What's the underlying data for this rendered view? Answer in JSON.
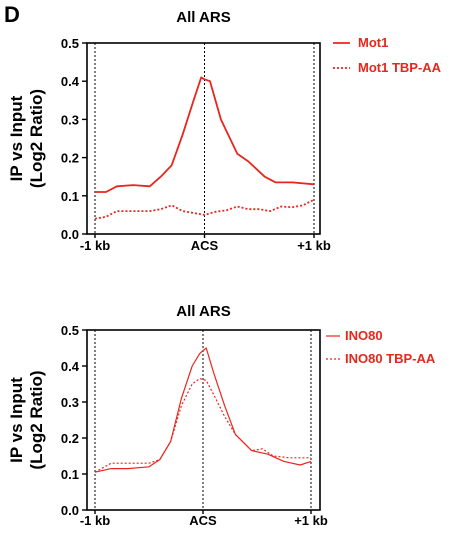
{
  "panel_label": "D",
  "colors": {
    "series": "#e8261c",
    "axis": "#000000"
  },
  "chart_data": [
    {
      "type": "line",
      "title": "All ARS",
      "ylabel_lines": [
        "IP vs Input",
        "(Log2 Ratio)"
      ],
      "xlabel": "",
      "x_ticks": [
        "-1 kb",
        "ACS",
        "+1 kb"
      ],
      "xlim": [
        -1,
        1
      ],
      "ylim": [
        0,
        0.5
      ],
      "yticks": [
        "0.0",
        "0.1",
        "0.2",
        "0.3",
        "0.4",
        "0.5"
      ],
      "reference_lines_x": [
        -1,
        0,
        1
      ],
      "legend_position": "right",
      "series": [
        {
          "name": "Mot1",
          "style": "solid",
          "x": [
            -1.0,
            -0.9,
            -0.8,
            -0.65,
            -0.5,
            -0.4,
            -0.3,
            -0.2,
            -0.1,
            -0.03,
            0.0,
            0.05,
            0.15,
            0.3,
            0.4,
            0.55,
            0.65,
            0.8,
            1.0
          ],
          "y": [
            0.11,
            0.11,
            0.125,
            0.128,
            0.125,
            0.15,
            0.18,
            0.26,
            0.35,
            0.41,
            0.405,
            0.4,
            0.3,
            0.21,
            0.19,
            0.15,
            0.135,
            0.135,
            0.13
          ]
        },
        {
          "name": "Mot1 TBP-AA",
          "style": "dotted",
          "x": [
            -1.0,
            -0.9,
            -0.8,
            -0.65,
            -0.5,
            -0.4,
            -0.3,
            -0.2,
            -0.1,
            0.0,
            0.1,
            0.2,
            0.3,
            0.4,
            0.5,
            0.6,
            0.7,
            0.8,
            0.9,
            1.0
          ],
          "y": [
            0.04,
            0.045,
            0.06,
            0.06,
            0.06,
            0.065,
            0.075,
            0.06,
            0.055,
            0.05,
            0.058,
            0.062,
            0.072,
            0.065,
            0.065,
            0.06,
            0.072,
            0.07,
            0.075,
            0.09
          ]
        }
      ]
    },
    {
      "type": "line",
      "title": "All ARS",
      "ylabel_lines": [
        "IP vs Input",
        "(Log2 Ratio)"
      ],
      "xlabel": "",
      "x_ticks": [
        "-1 kb",
        "ACS",
        "+1 kb"
      ],
      "xlim": [
        -1,
        1
      ],
      "ylim": [
        0,
        0.5
      ],
      "yticks": [
        "0.0",
        "0.1",
        "0.2",
        "0.3",
        "0.4",
        "0.5"
      ],
      "reference_lines_x": [
        -1,
        0,
        1
      ],
      "legend_position": "right",
      "series": [
        {
          "name": "INO80",
          "style": "solid",
          "x": [
            -1.0,
            -0.85,
            -0.7,
            -0.5,
            -0.4,
            -0.3,
            -0.2,
            -0.1,
            -0.03,
            0.03,
            0.1,
            0.2,
            0.3,
            0.45,
            0.6,
            0.75,
            0.9,
            1.0
          ],
          "y": [
            0.105,
            0.115,
            0.115,
            0.12,
            0.14,
            0.19,
            0.31,
            0.4,
            0.435,
            0.45,
            0.38,
            0.29,
            0.21,
            0.165,
            0.155,
            0.135,
            0.125,
            0.135
          ]
        },
        {
          "name": "INO80 TBP-AA",
          "style": "dotted",
          "x": [
            -1.0,
            -0.85,
            -0.7,
            -0.5,
            -0.4,
            -0.3,
            -0.2,
            -0.1,
            -0.03,
            0.03,
            0.1,
            0.2,
            0.3,
            0.45,
            0.55,
            0.65,
            0.8,
            0.9,
            1.0
          ],
          "y": [
            0.105,
            0.13,
            0.13,
            0.13,
            0.14,
            0.19,
            0.29,
            0.35,
            0.365,
            0.36,
            0.32,
            0.26,
            0.21,
            0.165,
            0.17,
            0.15,
            0.145,
            0.145,
            0.145
          ]
        }
      ]
    }
  ]
}
